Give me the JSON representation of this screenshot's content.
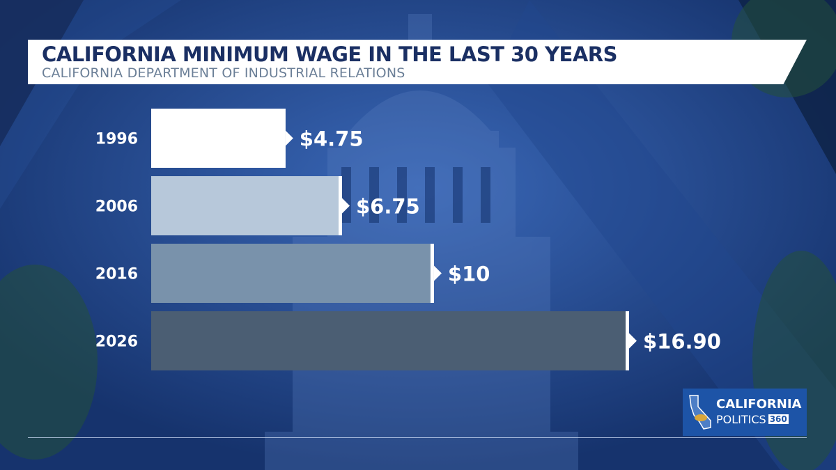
{
  "chart_data": {
    "type": "bar",
    "orientation": "horizontal",
    "title": "CALIFORNIA MINIMUM WAGE IN THE LAST 30 YEARS",
    "subtitle": "CALIFORNIA DEPARTMENT OF INDUSTRIAL RELATIONS",
    "categories": [
      "1996",
      "2006",
      "2016",
      "2026"
    ],
    "values": [
      4.75,
      6.75,
      10,
      16.9
    ],
    "value_labels": [
      "$4.75",
      "$6.75",
      "$10",
      "$16.90"
    ],
    "bar_colors": [
      "#ffffff",
      "#b7c8da",
      "#7992ab",
      "#4b5e73"
    ],
    "xlim": [
      0,
      16.9
    ],
    "xlabel": "",
    "ylabel": "",
    "grid": false,
    "legend": "none"
  },
  "branding": {
    "line1": "CALIFORNIA",
    "line2": "POLITICS",
    "number": "360",
    "icon": "california-bear-icon"
  }
}
